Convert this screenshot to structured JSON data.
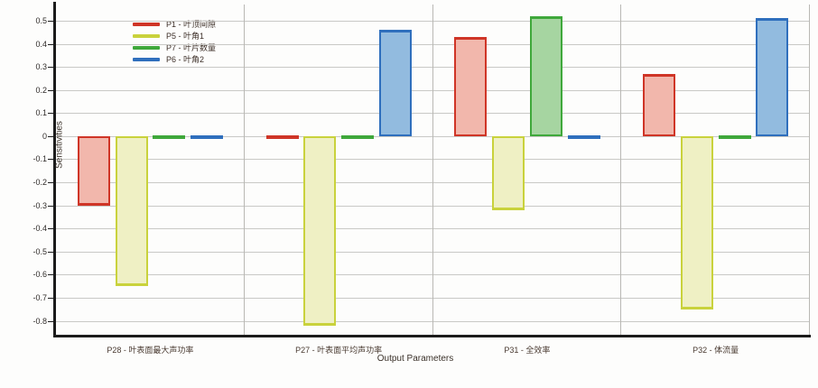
{
  "chart_data": {
    "type": "bar",
    "title": "",
    "xlabel": "Output Parameters",
    "ylabel": "Sensitivities",
    "ylim": [
      -0.86,
      0.57
    ],
    "yticks": [
      0.5,
      0.4,
      0.3,
      0.2,
      0.1,
      0,
      -0.1,
      -0.2,
      -0.3,
      -0.4,
      -0.5,
      -0.6,
      -0.7,
      -0.8
    ],
    "grid": true,
    "legend_position": "top-left",
    "categories": [
      "P28 - 叶表面最大声功率",
      "P27 - 叶表面平均声功率",
      "P31 - 全效率",
      "P32 - 体流量"
    ],
    "series": [
      {
        "name": "P1 - 叶顶间隙",
        "border": "#cf3527",
        "fill": "#f2b7ac",
        "values": [
          -0.3,
          -0.01,
          0.43,
          0.27
        ]
      },
      {
        "name": "P5 - 叶角1",
        "border": "#c9d23c",
        "fill": "#eff0c4",
        "values": [
          -0.65,
          -0.82,
          -0.32,
          -0.75
        ]
      },
      {
        "name": "P7 - 叶片数量",
        "border": "#3fa83b",
        "fill": "#a6d5a1",
        "values": [
          -0.01,
          -0.01,
          0.52,
          -0.01
        ]
      },
      {
        "name": "P6 - 叶角2",
        "border": "#2f6fbd",
        "fill": "#92bbdf",
        "values": [
          -0.01,
          0.46,
          -0.01,
          0.51
        ]
      }
    ],
    "axis_color": "#1b1b1b",
    "gridline_color": "#c9c9c6"
  }
}
